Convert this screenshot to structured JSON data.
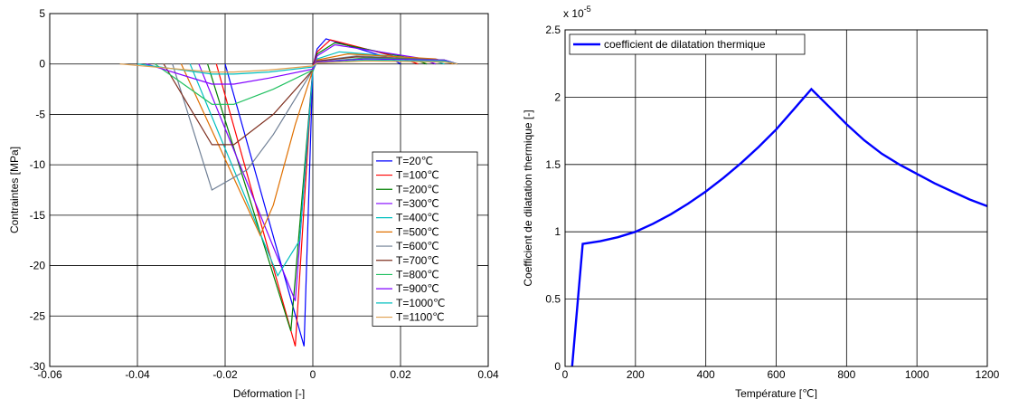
{
  "chart_data": [
    {
      "type": "line",
      "title": "",
      "xlabel": "Déformation [-]",
      "ylabel": "Contraintes [MPa]",
      "xlim": [
        -0.06,
        0.04
      ],
      "ylim": [
        -30,
        5
      ],
      "xticks": [
        "-0.06",
        "-0.04",
        "-0.02",
        "0",
        "0.02",
        "0.04"
      ],
      "yticks": [
        "5",
        "0",
        "-5",
        "-10",
        "-15",
        "-20",
        "-25",
        "-30"
      ],
      "grid": true,
      "legend_position": "lower-right",
      "series": [
        {
          "name": "T=20℃",
          "color": "#0000ff",
          "x": [
            -0.02,
            -0.002,
            0.0,
            0.001,
            0.003,
            0.018,
            0.02
          ],
          "y": [
            0.0,
            -28.0,
            -0.3,
            1.5,
            2.5,
            0.5,
            0.0
          ]
        },
        {
          "name": "T=100℃",
          "color": "#ff0000",
          "x": [
            -0.022,
            -0.004,
            0.0,
            0.001,
            0.004,
            0.02,
            0.024
          ],
          "y": [
            0.0,
            -28.0,
            -0.3,
            1.2,
            2.4,
            0.6,
            0.0
          ]
        },
        {
          "name": "T=200℃",
          "color": "#008000",
          "x": [
            -0.024,
            -0.005,
            0.0,
            0.001,
            0.005,
            0.022,
            0.026
          ],
          "y": [
            0.0,
            -26.5,
            -0.5,
            1.0,
            2.1,
            0.6,
            0.0
          ]
        },
        {
          "name": "T=300℃",
          "color": "#8000ff",
          "x": [
            -0.026,
            -0.004,
            0.0,
            0.001,
            0.005,
            0.024,
            0.028
          ],
          "y": [
            0.0,
            -23.5,
            -0.5,
            0.8,
            1.9,
            0.6,
            0.0
          ]
        },
        {
          "name": "T=400℃",
          "color": "#00bfbf",
          "x": [
            -0.028,
            -0.008,
            -0.003,
            0.0,
            0.001,
            0.006,
            0.026,
            0.03
          ],
          "y": [
            0.0,
            -21.0,
            -17.5,
            -0.8,
            0.5,
            1.2,
            0.5,
            0.0
          ]
        },
        {
          "name": "T=500℃",
          "color": "#e07000",
          "x": [
            -0.03,
            -0.012,
            -0.009,
            -0.004,
            0.0,
            0.001,
            0.008,
            0.028,
            0.032
          ],
          "y": [
            0.0,
            -17.0,
            -14.0,
            -6.0,
            -0.6,
            0.4,
            1.0,
            0.5,
            0.0
          ]
        },
        {
          "name": "T=600℃",
          "color": "#6f7f95",
          "x": [
            -0.032,
            -0.023,
            -0.015,
            -0.009,
            0.0,
            0.001,
            0.01,
            0.03,
            0.033
          ],
          "y": [
            0.0,
            -12.5,
            -10.5,
            -7.0,
            -0.6,
            0.3,
            0.8,
            0.4,
            0.0
          ]
        },
        {
          "name": "T=700℃",
          "color": "#7f3020",
          "x": [
            -0.034,
            -0.023,
            -0.018,
            -0.009,
            0.0,
            0.001,
            0.01,
            0.03,
            0.033
          ],
          "y": [
            0.0,
            -8.0,
            -8.0,
            -5.0,
            -0.6,
            0.3,
            0.7,
            0.4,
            0.0
          ]
        },
        {
          "name": "T=800℃",
          "color": "#20c060",
          "x": [
            -0.036,
            -0.023,
            -0.018,
            -0.009,
            0.0,
            0.001,
            0.012,
            0.03,
            0.033
          ],
          "y": [
            0.0,
            -4.0,
            -4.0,
            -2.5,
            -0.6,
            0.2,
            0.6,
            0.4,
            0.0
          ]
        },
        {
          "name": "T=900℃",
          "color": "#8000ff",
          "x": [
            -0.038,
            -0.023,
            -0.018,
            -0.01,
            0.0,
            0.001,
            0.012,
            0.03,
            0.033
          ],
          "y": [
            0.0,
            -2.0,
            -2.0,
            -1.4,
            -0.5,
            0.2,
            0.5,
            0.4,
            0.0
          ]
        },
        {
          "name": "T=1000℃",
          "color": "#00bfbf",
          "x": [
            -0.04,
            -0.023,
            -0.018,
            -0.01,
            0.0,
            0.001,
            0.012,
            0.03,
            0.033
          ],
          "y": [
            0.0,
            -1.0,
            -1.0,
            -0.8,
            -0.3,
            0.1,
            0.4,
            0.3,
            0.0
          ]
        },
        {
          "name": "T=1100℃",
          "color": "#e0a050",
          "x": [
            -0.044,
            -0.023,
            -0.018,
            -0.01,
            0.0,
            0.001,
            0.012,
            0.03,
            0.033
          ],
          "y": [
            0.0,
            -0.8,
            -0.8,
            -0.6,
            -0.2,
            0.1,
            0.3,
            0.2,
            0.0
          ]
        }
      ]
    },
    {
      "type": "line",
      "title": "",
      "xlabel": "Température [℃]",
      "ylabel": "Coefficient de dilatation thermique [-]",
      "xlim": [
        0,
        1200
      ],
      "ylim": [
        0,
        2.5
      ],
      "y_multiplier": "x 10",
      "y_multiplier_exp": "-5",
      "xticks": [
        "0",
        "200",
        "400",
        "600",
        "800",
        "1000",
        "1200"
      ],
      "yticks": [
        "0",
        "0.5",
        "1",
        "1.5",
        "2",
        "2.5"
      ],
      "grid": true,
      "legend_position": "top-left",
      "series": [
        {
          "name": "coefficient de dilatation thermique",
          "color": "#0000ff",
          "x": [
            20,
            50,
            100,
            150,
            200,
            250,
            300,
            350,
            400,
            450,
            500,
            550,
            600,
            650,
            700,
            750,
            800,
            850,
            900,
            950,
            1000,
            1050,
            1100,
            1150,
            1200
          ],
          "y": [
            0.0,
            0.91,
            0.93,
            0.96,
            1.0,
            1.06,
            1.13,
            1.21,
            1.3,
            1.4,
            1.51,
            1.63,
            1.76,
            1.91,
            2.06,
            1.93,
            1.8,
            1.68,
            1.58,
            1.5,
            1.43,
            1.36,
            1.3,
            1.24,
            1.19
          ]
        }
      ]
    }
  ]
}
